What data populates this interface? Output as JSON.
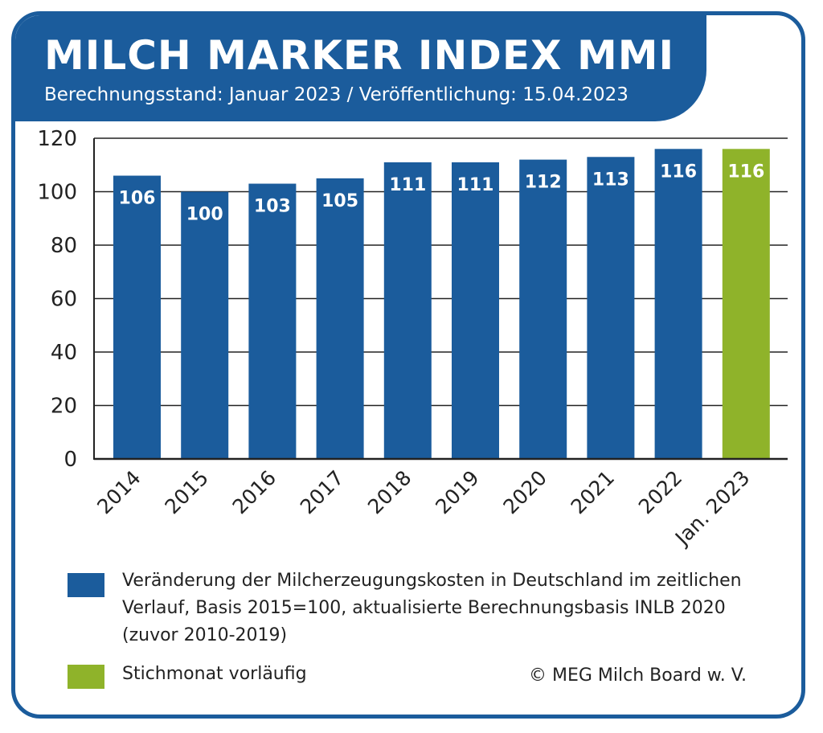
{
  "header": {
    "title": "MILCH MARKER INDEX MMI",
    "subtitle": "Berechnungsstand: Januar 2023 / Veröffentlichung: 15.04.2023"
  },
  "colors": {
    "brand_blue": "#1b5c9c",
    "highlight_green": "#8fb32a"
  },
  "chart_data": {
    "type": "bar",
    "categories": [
      "2014",
      "2015",
      "2016",
      "2017",
      "2018",
      "2019",
      "2020",
      "2021",
      "2022",
      "Jan. 2023"
    ],
    "values": [
      106,
      100,
      103,
      105,
      111,
      111,
      112,
      113,
      116,
      116
    ],
    "data_labels": [
      "106",
      "100",
      "103",
      "105",
      "111",
      "111",
      "112",
      "113",
      "116",
      "116"
    ],
    "bar_colors": [
      "#1b5c9c",
      "#1b5c9c",
      "#1b5c9c",
      "#1b5c9c",
      "#1b5c9c",
      "#1b5c9c",
      "#1b5c9c",
      "#1b5c9c",
      "#1b5c9c",
      "#8fb32a"
    ],
    "ylim": [
      0,
      120
    ],
    "yticks": [
      "0",
      "20",
      "40",
      "60",
      "80",
      "100",
      "120"
    ],
    "grid": true,
    "legend_position": "bottom"
  },
  "legend": [
    {
      "color": "#1b5c9c",
      "text_lines": [
        "Veränderung der Milcherzeugungskosten in Deutschland im zeitlichen",
        "Verlauf, Basis 2015=100, aktualisierte Berechnungsbasis INLB 2020",
        "(zuvor 2010-2019)"
      ]
    },
    {
      "color": "#8fb32a",
      "text_lines": [
        "Stichmonat vorläufig"
      ]
    }
  ],
  "copyright": "© MEG Milch Board w. V."
}
